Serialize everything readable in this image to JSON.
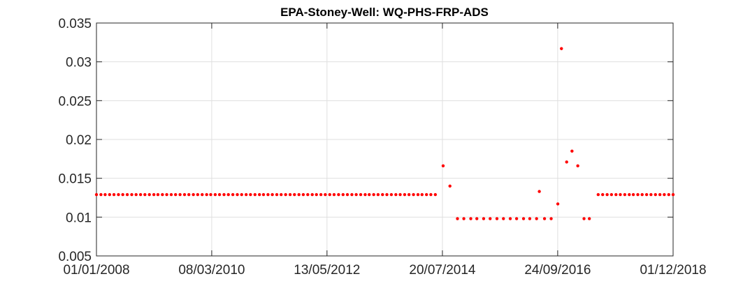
{
  "chart_data": {
    "type": "scatter",
    "title": "EPA-Stoney-Well: WQ-PHS-FRP-ADS",
    "xlabel": "",
    "ylabel": "",
    "x_axis_type": "date",
    "xlim": [
      "2008-01-01",
      "2018-12-01"
    ],
    "ylim": [
      0.005,
      0.035
    ],
    "x_ticks": [
      "2008-01-01",
      "2010-03-08",
      "2012-05-13",
      "2014-07-20",
      "2016-09-24",
      "2018-12-01"
    ],
    "x_tick_labels": [
      "01/01/2008",
      "08/03/2010",
      "13/05/2012",
      "20/07/2014",
      "24/09/2016",
      "01/12/2018"
    ],
    "y_ticks": [
      0.005,
      0.01,
      0.015,
      0.02,
      0.025,
      0.03,
      0.035
    ],
    "y_tick_labels": [
      "0.005",
      "0.01",
      "0.015",
      "0.02",
      "0.025",
      "0.03",
      "0.035"
    ],
    "grid": true,
    "marker_color": "#ff0000",
    "series": [
      {
        "points": [
          [
            "2008-01-01",
            0.0129
          ],
          [
            "2008-02-01",
            0.0129
          ],
          [
            "2008-03-01",
            0.0129
          ],
          [
            "2008-04-01",
            0.0129
          ],
          [
            "2008-05-01",
            0.0129
          ],
          [
            "2008-06-01",
            0.0129
          ],
          [
            "2008-07-01",
            0.0129
          ],
          [
            "2008-08-01",
            0.0129
          ],
          [
            "2008-09-01",
            0.0129
          ],
          [
            "2008-10-01",
            0.0129
          ],
          [
            "2008-11-01",
            0.0129
          ],
          [
            "2008-12-01",
            0.0129
          ],
          [
            "2009-01-01",
            0.0129
          ],
          [
            "2009-02-01",
            0.0129
          ],
          [
            "2009-03-01",
            0.0129
          ],
          [
            "2009-04-01",
            0.0129
          ],
          [
            "2009-05-01",
            0.0129
          ],
          [
            "2009-06-01",
            0.0129
          ],
          [
            "2009-07-01",
            0.0129
          ],
          [
            "2009-08-01",
            0.0129
          ],
          [
            "2009-09-01",
            0.0129
          ],
          [
            "2009-10-01",
            0.0129
          ],
          [
            "2009-11-01",
            0.0129
          ],
          [
            "2009-12-01",
            0.0129
          ],
          [
            "2010-01-01",
            0.0129
          ],
          [
            "2010-02-01",
            0.0129
          ],
          [
            "2010-03-01",
            0.0129
          ],
          [
            "2010-04-01",
            0.0129
          ],
          [
            "2010-05-01",
            0.0129
          ],
          [
            "2010-06-01",
            0.0129
          ],
          [
            "2010-07-01",
            0.0129
          ],
          [
            "2010-08-01",
            0.0129
          ],
          [
            "2010-09-01",
            0.0129
          ],
          [
            "2010-10-01",
            0.0129
          ],
          [
            "2010-11-01",
            0.0129
          ],
          [
            "2010-12-01",
            0.0129
          ],
          [
            "2011-01-01",
            0.0129
          ],
          [
            "2011-02-01",
            0.0129
          ],
          [
            "2011-03-01",
            0.0129
          ],
          [
            "2011-04-01",
            0.0129
          ],
          [
            "2011-05-01",
            0.0129
          ],
          [
            "2011-06-01",
            0.0129
          ],
          [
            "2011-07-01",
            0.0129
          ],
          [
            "2011-08-01",
            0.0129
          ],
          [
            "2011-09-01",
            0.0129
          ],
          [
            "2011-10-01",
            0.0129
          ],
          [
            "2011-11-01",
            0.0129
          ],
          [
            "2011-12-01",
            0.0129
          ],
          [
            "2012-01-01",
            0.0129
          ],
          [
            "2012-02-01",
            0.0129
          ],
          [
            "2012-03-01",
            0.0129
          ],
          [
            "2012-04-01",
            0.0129
          ],
          [
            "2012-05-01",
            0.0129
          ],
          [
            "2012-06-01",
            0.0129
          ],
          [
            "2012-07-01",
            0.0129
          ],
          [
            "2012-08-01",
            0.0129
          ],
          [
            "2012-09-01",
            0.0129
          ],
          [
            "2012-10-01",
            0.0129
          ],
          [
            "2012-11-01",
            0.0129
          ],
          [
            "2012-12-01",
            0.0129
          ],
          [
            "2013-01-01",
            0.0129
          ],
          [
            "2013-02-01",
            0.0129
          ],
          [
            "2013-03-01",
            0.0129
          ],
          [
            "2013-04-01",
            0.0129
          ],
          [
            "2013-05-01",
            0.0129
          ],
          [
            "2013-06-01",
            0.0129
          ],
          [
            "2013-07-01",
            0.0129
          ],
          [
            "2013-08-01",
            0.0129
          ],
          [
            "2013-09-01",
            0.0129
          ],
          [
            "2013-10-01",
            0.0129
          ],
          [
            "2013-11-01",
            0.0129
          ],
          [
            "2013-12-01",
            0.0129
          ],
          [
            "2014-01-01",
            0.0129
          ],
          [
            "2014-02-01",
            0.0129
          ],
          [
            "2014-03-01",
            0.0129
          ],
          [
            "2014-04-01",
            0.0129
          ],
          [
            "2014-05-01",
            0.0129
          ],
          [
            "2014-06-01",
            0.0129
          ],
          [
            "2014-07-25",
            0.0166
          ],
          [
            "2014-09-10",
            0.014
          ],
          [
            "2014-11-01",
            0.0098
          ],
          [
            "2014-12-15",
            0.0098
          ],
          [
            "2015-02-01",
            0.0098
          ],
          [
            "2015-03-15",
            0.0098
          ],
          [
            "2015-05-01",
            0.0098
          ],
          [
            "2015-06-15",
            0.0098
          ],
          [
            "2015-08-01",
            0.0098
          ],
          [
            "2015-09-15",
            0.0098
          ],
          [
            "2015-11-01",
            0.0098
          ],
          [
            "2015-12-15",
            0.0098
          ],
          [
            "2016-02-01",
            0.0098
          ],
          [
            "2016-03-15",
            0.0098
          ],
          [
            "2016-05-01",
            0.0098
          ],
          [
            "2016-05-20",
            0.0133
          ],
          [
            "2016-06-25",
            0.0098
          ],
          [
            "2016-08-10",
            0.0098
          ],
          [
            "2016-09-25",
            0.0117
          ],
          [
            "2016-10-20",
            0.0317
          ],
          [
            "2016-11-25",
            0.0171
          ],
          [
            "2017-01-01",
            0.0185
          ],
          [
            "2017-02-10",
            0.0166
          ],
          [
            "2017-03-25",
            0.0098
          ],
          [
            "2017-05-01",
            0.0098
          ],
          [
            "2017-07-01",
            0.0129
          ],
          [
            "2017-08-01",
            0.0129
          ],
          [
            "2017-09-01",
            0.0129
          ],
          [
            "2017-10-01",
            0.0129
          ],
          [
            "2017-11-01",
            0.0129
          ],
          [
            "2017-12-01",
            0.0129
          ],
          [
            "2018-01-01",
            0.0129
          ],
          [
            "2018-02-01",
            0.0129
          ],
          [
            "2018-03-01",
            0.0129
          ],
          [
            "2018-04-01",
            0.0129
          ],
          [
            "2018-05-01",
            0.0129
          ],
          [
            "2018-06-01",
            0.0129
          ],
          [
            "2018-07-01",
            0.0129
          ],
          [
            "2018-08-01",
            0.0129
          ],
          [
            "2018-09-01",
            0.0129
          ],
          [
            "2018-10-01",
            0.0129
          ],
          [
            "2018-11-01",
            0.0129
          ],
          [
            "2018-12-01",
            0.0129
          ]
        ]
      }
    ]
  }
}
